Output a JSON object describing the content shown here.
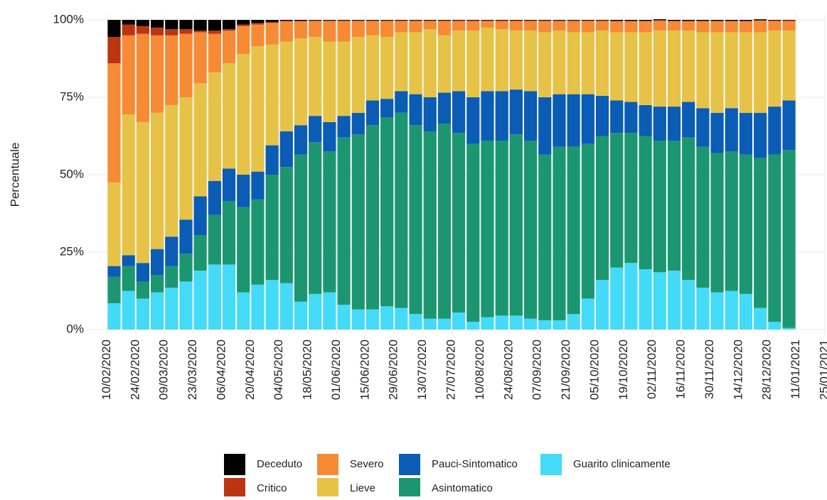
{
  "chart_data": {
    "type": "stacked_bar_percent",
    "y_label": "Percentuale",
    "x": [
      "10/02/2020",
      "17/02/2020",
      "24/02/2020",
      "02/03/2020",
      "09/03/2020",
      "16/03/2020",
      "23/03/2020",
      "30/03/2020",
      "06/04/2020",
      "13/04/2020",
      "20/04/2020",
      "27/04/2020",
      "04/05/2020",
      "11/05/2020",
      "18/05/2020",
      "25/05/2020",
      "01/06/2020",
      "08/06/2020",
      "15/06/2020",
      "22/06/2020",
      "29/06/2020",
      "06/07/2020",
      "13/07/2020",
      "20/07/2020",
      "27/07/2020",
      "03/08/2020",
      "10/08/2020",
      "17/08/2020",
      "24/08/2020",
      "31/08/2020",
      "07/09/2020",
      "14/09/2020",
      "21/09/2020",
      "28/09/2020",
      "05/10/2020",
      "12/10/2020",
      "19/10/2020",
      "26/10/2020",
      "02/11/2020",
      "09/11/2020",
      "16/11/2020",
      "23/11/2020",
      "30/11/2020",
      "07/12/2020",
      "14/12/2020",
      "21/12/2020",
      "28/12/2020",
      "04/01/2021"
    ],
    "series": [
      {
        "name": "Deceduto",
        "color": "#000000",
        "values": [
          5.5,
          1.5,
          2,
          2.5,
          3,
          3,
          3.5,
          3.5,
          3,
          1.5,
          1,
          0.7,
          0.3,
          0.3,
          0.2,
          0.2,
          0.2,
          0.2,
          0.2,
          0.2,
          0.2,
          0.2,
          0.2,
          0.2,
          0.2,
          0.2,
          0.2,
          0.2,
          0.2,
          0.2,
          0.2,
          0.2,
          0.2,
          0.2,
          0.2,
          0.3,
          0.3,
          0.3,
          0.3,
          0.3,
          0.3,
          0.3,
          0.3,
          0.3,
          0.3,
          0.3,
          0.2,
          0.2
        ]
      },
      {
        "name": "Critico",
        "color": "#bd3411",
        "values": [
          8.5,
          3.5,
          2.5,
          2.5,
          2,
          1.5,
          0.5,
          1,
          0.5,
          0.5,
          0.5,
          0.3,
          0.2,
          0.2,
          0.2,
          0.2,
          0.2,
          0.2,
          0.2,
          0.2,
          0.2,
          0.2,
          0.2,
          0.2,
          0.2,
          0.2,
          0.2,
          0.2,
          0.2,
          0.2,
          0.2,
          0.2,
          0.2,
          0.2,
          0.2,
          0.2,
          0.2,
          0.2,
          0.2,
          0.2,
          0.2,
          0.2,
          0.2,
          0.2,
          0.2,
          0.2,
          0.2,
          0.2
        ]
      },
      {
        "name": "Severo",
        "color": "#f78a35",
        "values": [
          38.5,
          25.5,
          28.5,
          25,
          22.5,
          20.5,
          16.5,
          12.5,
          10.5,
          9,
          7,
          7,
          6.5,
          5.5,
          5.1,
          6.6,
          6.6,
          5.1,
          4.6,
          5.1,
          3.6,
          3.6,
          2.6,
          4.6,
          3.1,
          3.1,
          2.1,
          2.6,
          3.1,
          3.1,
          3.6,
          3.1,
          3.6,
          3.6,
          3.1,
          3.5,
          3.5,
          3.5,
          3.2,
          3,
          3,
          3.5,
          3.5,
          3.5,
          3.5,
          3.7,
          3.1,
          3.1
        ]
      },
      {
        "name": "Lieve",
        "color": "#e6c347",
        "values": [
          27,
          45.5,
          45.5,
          44,
          42.5,
          39.5,
          36.5,
          35,
          34,
          39,
          40.5,
          32.5,
          29,
          28,
          25.5,
          26,
          24,
          24.5,
          21,
          20,
          19,
          20,
          22,
          18.5,
          19.5,
          21.5,
          20.5,
          20,
          19,
          19.5,
          21,
          20.5,
          20,
          20,
          21,
          22,
          22.5,
          23.5,
          24.5,
          24.5,
          23,
          24.5,
          26,
          24.5,
          26,
          26,
          24.5,
          22.5
        ]
      },
      {
        "name": "Pauci-Sintomatico",
        "color": "#0a5cb4",
        "values": [
          3.5,
          3.5,
          6,
          8.5,
          9.5,
          11,
          12.5,
          11,
          10.5,
          10.5,
          9,
          9.5,
          11.5,
          9.5,
          8.5,
          9.5,
          7,
          7,
          8,
          6,
          7,
          10,
          11,
          10,
          13.5,
          15,
          16,
          16,
          14.5,
          16,
          18.5,
          17,
          17,
          16,
          13,
          10.5,
          10,
          10,
          11,
          11,
          11.5,
          12.5,
          13,
          14,
          13.5,
          14.5,
          15.5,
          16
        ]
      },
      {
        "name": "Asintomatico",
        "color": "#1c9670",
        "values": [
          8.5,
          8,
          5.5,
          5.5,
          7,
          9,
          11.5,
          16,
          20.5,
          27.5,
          27.5,
          34,
          37.5,
          47.5,
          49,
          45.5,
          54,
          56.5,
          59.5,
          61,
          63,
          61,
          60.5,
          63,
          58,
          57.5,
          57,
          56.5,
          58.5,
          57.5,
          53.5,
          56,
          54,
          50,
          46.5,
          43.5,
          42,
          43,
          42.5,
          42,
          46,
          45.5,
          45,
          45,
          45,
          48.5,
          54,
          57.5
        ]
      },
      {
        "name": "Guarito clinicamente",
        "color": "#43dbf8",
        "values": [
          8.5,
          12.5,
          10,
          12,
          13.5,
          15.5,
          19,
          21,
          21,
          12,
          14.5,
          16,
          15,
          9,
          11.5,
          12,
          8,
          6.5,
          6.5,
          7.5,
          7,
          5,
          3.5,
          3.5,
          5.5,
          2.5,
          4,
          4.5,
          4.5,
          3.5,
          3,
          3,
          5,
          10,
          16,
          20,
          21.5,
          19.5,
          18.5,
          19,
          16,
          13.5,
          12,
          12.5,
          11.5,
          7,
          2.5,
          0.5
        ]
      }
    ],
    "ylim": [
      0,
      100
    ],
    "yticks": [
      {
        "value": 0,
        "label": "0%"
      },
      {
        "value": 25,
        "label": "25%"
      },
      {
        "value": 50,
        "label": "50%"
      },
      {
        "value": 75,
        "label": "75%"
      },
      {
        "value": 100,
        "label": "100%"
      }
    ],
    "xlim": [
      "05/02/2020",
      "25/01/2021"
    ],
    "xticks": [
      "10/02/2020",
      "24/02/2020",
      "09/03/2020",
      "23/03/2020",
      "06/04/2020",
      "20/04/2020",
      "04/05/2020",
      "18/05/2020",
      "01/06/2020",
      "15/06/2020",
      "29/06/2020",
      "13/07/2020",
      "27/07/2020",
      "10/08/2020",
      "24/08/2020",
      "07/09/2020",
      "21/09/2020",
      "05/10/2020",
      "19/10/2020",
      "02/11/2020",
      "16/11/2020",
      "30/11/2020",
      "14/12/2020",
      "28/12/2020",
      "11/01/2021",
      "25/01/2021"
    ],
    "grid": true
  }
}
